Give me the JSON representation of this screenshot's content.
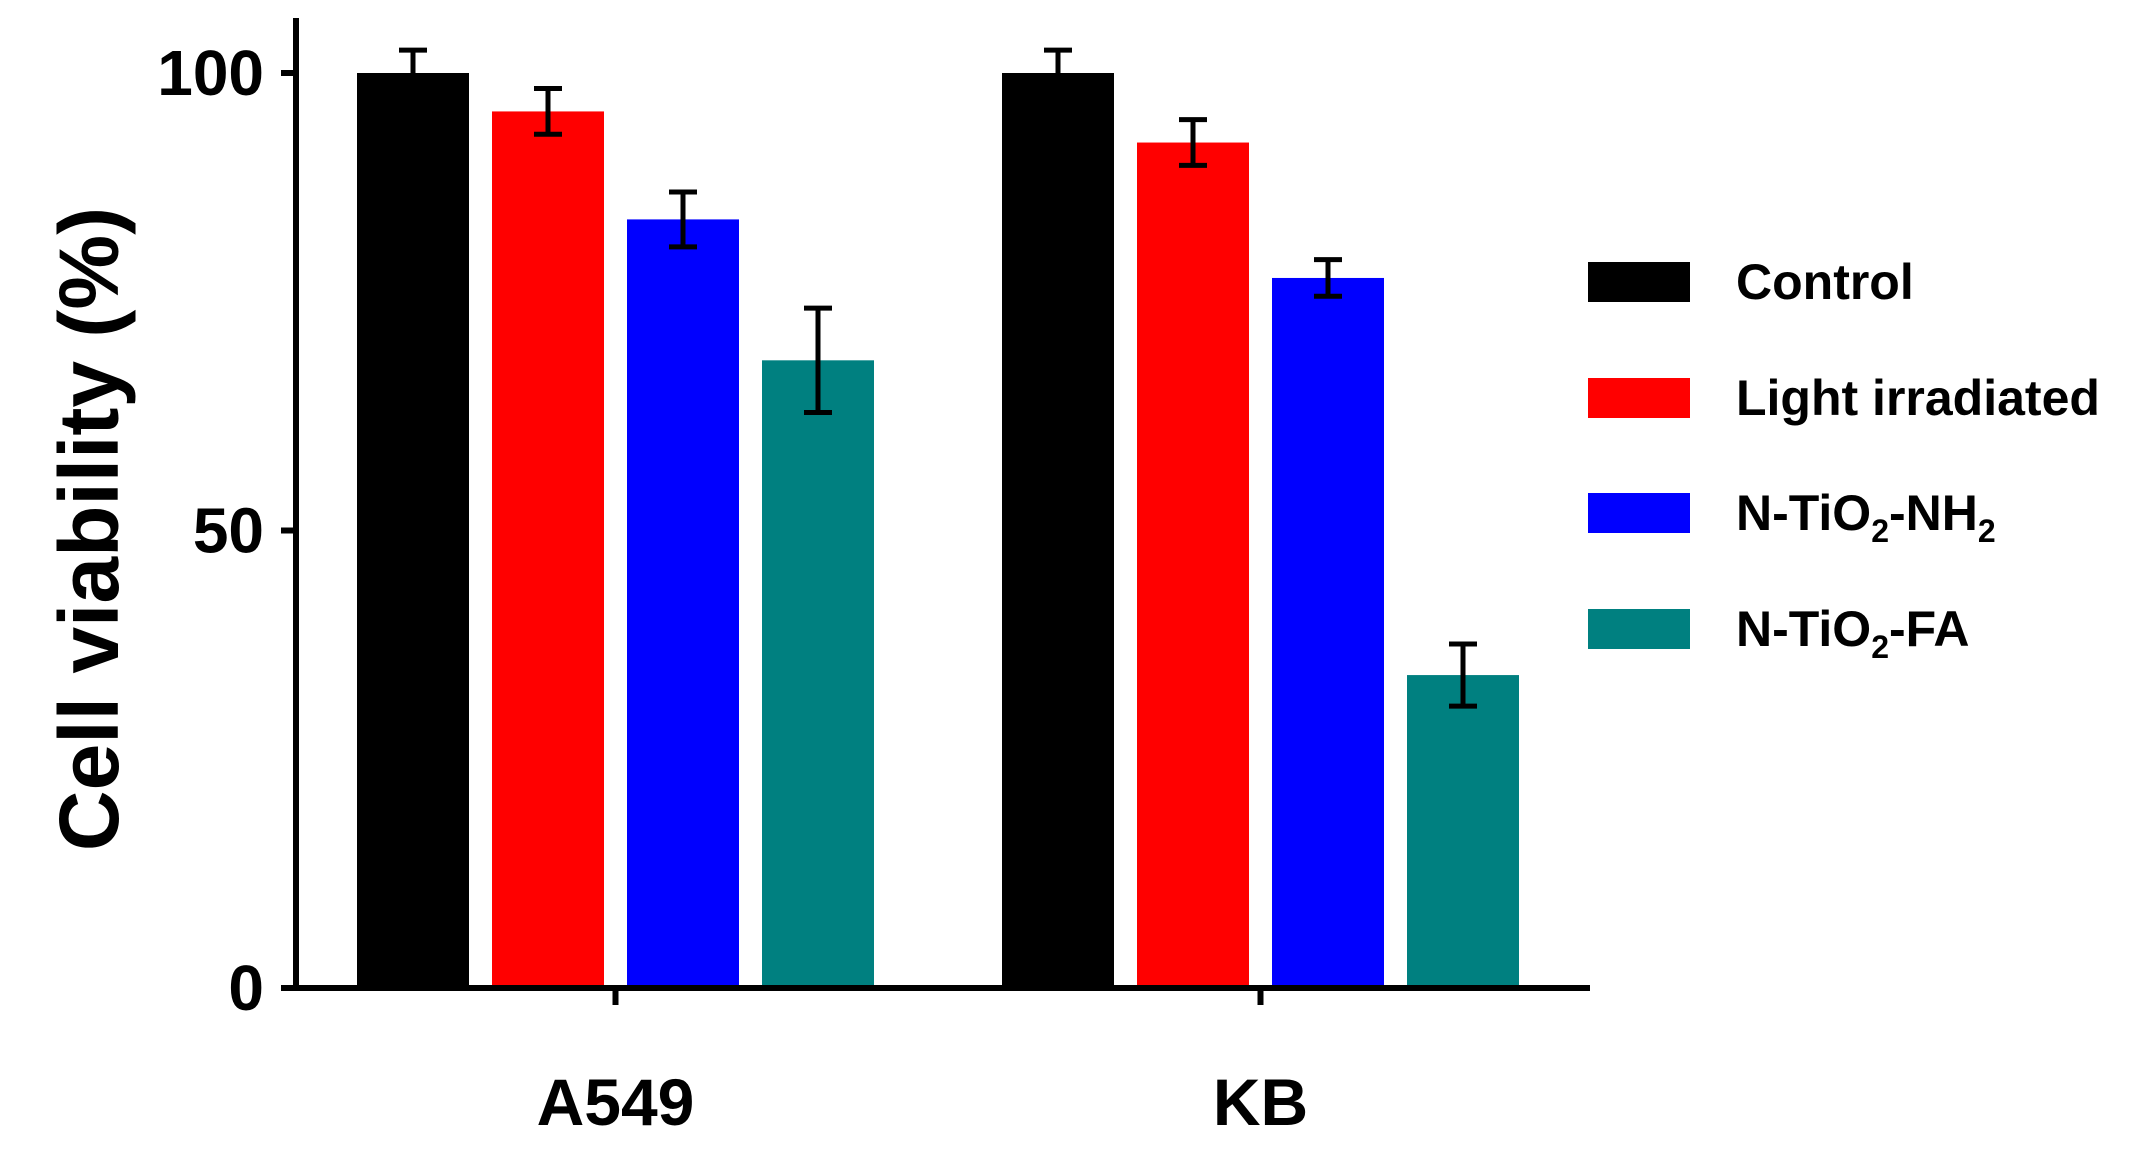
{
  "chart_data": {
    "type": "bar",
    "title": "",
    "xlabel": "",
    "ylabel": "Cell viability (%)",
    "ylim": [
      0,
      100
    ],
    "yticks": [
      "0",
      "50",
      "100"
    ],
    "categories": [
      "A549",
      "KB"
    ],
    "series": [
      {
        "name": "Control",
        "color": "#000000",
        "values": [
          100,
          100
        ],
        "errors": [
          2.5,
          2.5
        ]
      },
      {
        "name": "Light irradiated",
        "color": "#ff0000",
        "values": [
          95.8,
          92.4
        ],
        "errors": [
          2.5,
          2.5
        ]
      },
      {
        "name": "N-TiO2-NH2",
        "name_parts": [
          "N-TiO",
          "2",
          "-NH",
          "2"
        ],
        "color": "#0000ff",
        "values": [
          84,
          77.6
        ],
        "errors": [
          3,
          2
        ]
      },
      {
        "name": "N-TiO2-FA",
        "name_parts": [
          "N-TiO",
          "2",
          "-FA"
        ],
        "color": "#008080",
        "values": [
          68.6,
          34.2
        ],
        "errors": [
          5.7,
          3.4
        ]
      }
    ],
    "legend_position": "right",
    "grid": false
  }
}
